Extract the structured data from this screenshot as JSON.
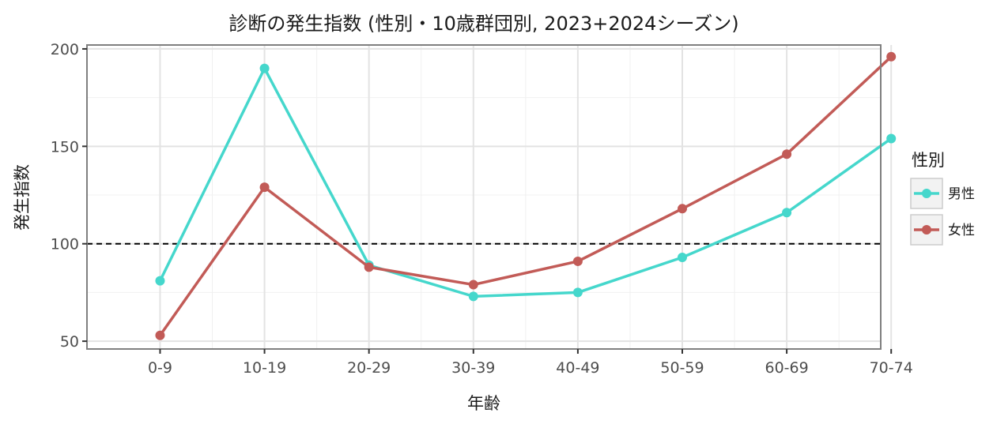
{
  "chart_data": {
    "type": "line",
    "title": "診断の発生指数 (性別・10歳群団別, 2023+2024シーズン)",
    "xlabel": "年齢",
    "ylabel": "発生指数",
    "categories": [
      "0-9",
      "10-19",
      "20-29",
      "30-39",
      "40-49",
      "50-59",
      "60-69",
      "70-74"
    ],
    "ylim": [
      46,
      202
    ],
    "yticks": [
      50,
      100,
      150,
      200
    ],
    "grid": true,
    "reference_line": {
      "y": 100,
      "style": "dashed"
    },
    "legend": {
      "title": "性別",
      "position": "right"
    },
    "series": [
      {
        "name": "男性",
        "color": "#45d7cc",
        "values": [
          81,
          190,
          89,
          73,
          75,
          93,
          116,
          154
        ]
      },
      {
        "name": "女性",
        "color": "#c25b57",
        "values": [
          53,
          129,
          88,
          79,
          91,
          118,
          146,
          196
        ]
      }
    ]
  }
}
